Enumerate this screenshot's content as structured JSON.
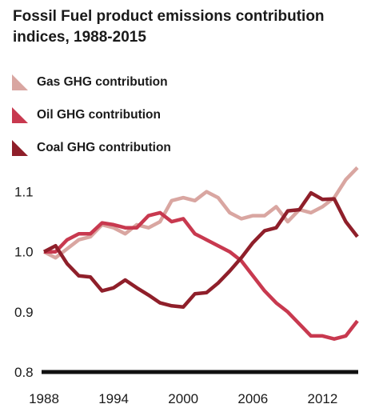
{
  "chart_data": {
    "type": "line",
    "title": "Fossil Fuel product emissions contribution indices, 1988-2015",
    "xlabel": "",
    "ylabel": "",
    "xlim": [
      1988,
      2015
    ],
    "ylim": [
      0.8,
      1.15
    ],
    "x_ticks": [
      "1988",
      "1994",
      "2000",
      "2006",
      "2012"
    ],
    "y_ticks": [
      "1.1",
      "1.0",
      "0.9",
      "0.8"
    ],
    "legend_position": "top-left",
    "x": [
      1988,
      1989,
      1990,
      1991,
      1992,
      1993,
      1994,
      1995,
      1996,
      1997,
      1998,
      1999,
      2000,
      2001,
      2002,
      2003,
      2004,
      2005,
      2006,
      2007,
      2008,
      2009,
      2010,
      2011,
      2012,
      2013,
      2014,
      2015
    ],
    "series": [
      {
        "name": "Gas GHG contribution",
        "color": "#d9a6a1",
        "values": [
          1.0,
          0.99,
          1.005,
          1.02,
          1.025,
          1.045,
          1.04,
          1.03,
          1.045,
          1.04,
          1.05,
          1.085,
          1.09,
          1.085,
          1.1,
          1.09,
          1.065,
          1.055,
          1.06,
          1.06,
          1.075,
          1.05,
          1.07,
          1.065,
          1.075,
          1.09,
          1.12,
          1.14
        ]
      },
      {
        "name": "Oil GHG contribution",
        "color": "#c8394f",
        "values": [
          1.0,
          1.0,
          1.02,
          1.03,
          1.03,
          1.048,
          1.045,
          1.04,
          1.04,
          1.06,
          1.065,
          1.05,
          1.055,
          1.03,
          1.02,
          1.01,
          1.0,
          0.985,
          0.96,
          0.935,
          0.915,
          0.9,
          0.88,
          0.86,
          0.86,
          0.855,
          0.86,
          0.885
        ]
      },
      {
        "name": "Coal GHG contribution",
        "color": "#8f1f2a",
        "values": [
          1.0,
          1.01,
          0.98,
          0.96,
          0.958,
          0.935,
          0.94,
          0.953,
          0.94,
          0.928,
          0.915,
          0.91,
          0.908,
          0.93,
          0.932,
          0.948,
          0.968,
          0.99,
          1.015,
          1.035,
          1.04,
          1.068,
          1.07,
          1.098,
          1.087,
          1.088,
          1.05,
          1.025
        ]
      }
    ]
  }
}
